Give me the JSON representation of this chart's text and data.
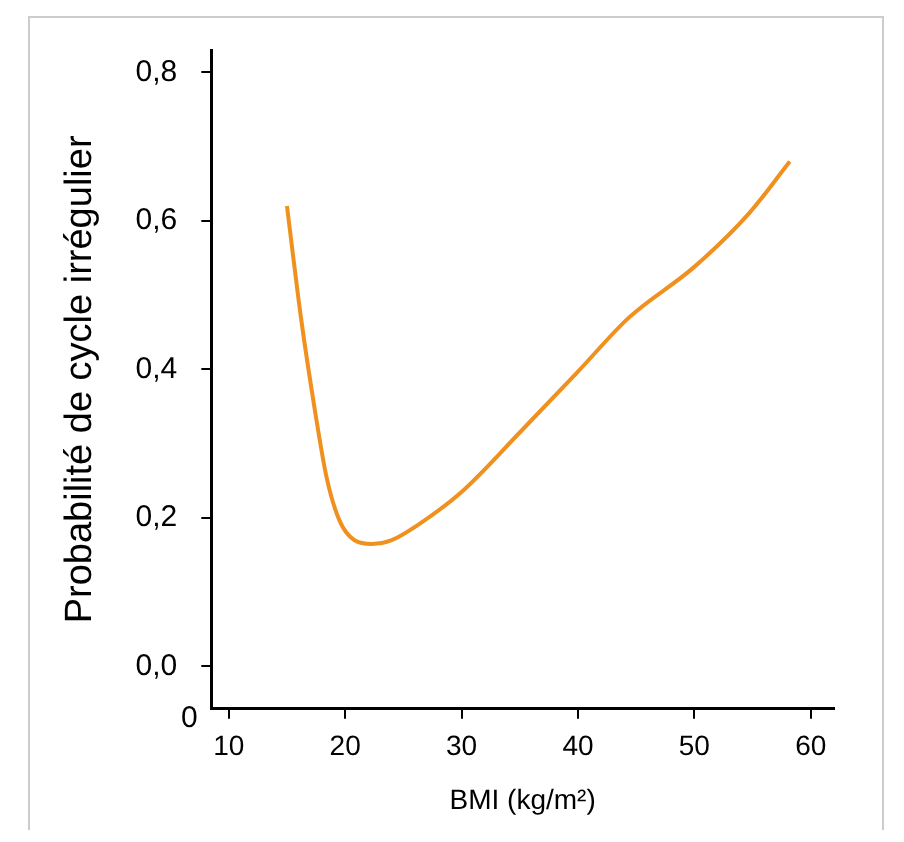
{
  "chart_data": {
    "type": "line",
    "xlabel": "BMI (kg/m²)",
    "ylabel": "Probabilité de cycle irrégulier",
    "x": [
      15,
      16.2,
      17.4,
      18.4,
      19.5,
      20.8,
      22.3,
      24,
      26.2,
      30,
      35,
      40,
      44.4,
      50,
      54.7,
      58.2
    ],
    "series": [
      {
        "color": "#f0901e",
        "values": [
          0.62,
          0.47,
          0.345,
          0.255,
          0.197,
          0.17,
          0.165,
          0.17,
          0.19,
          0.235,
          0.315,
          0.397,
          0.47,
          0.538,
          0.61,
          0.68
        ]
      }
    ],
    "xlim": [
      8.5,
      62
    ],
    "xticks": [
      10,
      20,
      30,
      40,
      50,
      60
    ],
    "ylim": [
      -0.057,
      0.83
    ],
    "yticks": [
      {
        "value": 0,
        "label": "0,0"
      },
      {
        "value": 0.2,
        "label": "0,2"
      },
      {
        "value": 0.4,
        "label": "0,4"
      },
      {
        "value": 0.6,
        "label": "0,6"
      },
      {
        "value": 0.8,
        "label": "0,8"
      }
    ],
    "annotations": [
      "0"
    ],
    "grid": false,
    "legend": false,
    "marker": "none",
    "line_style": "solid"
  }
}
